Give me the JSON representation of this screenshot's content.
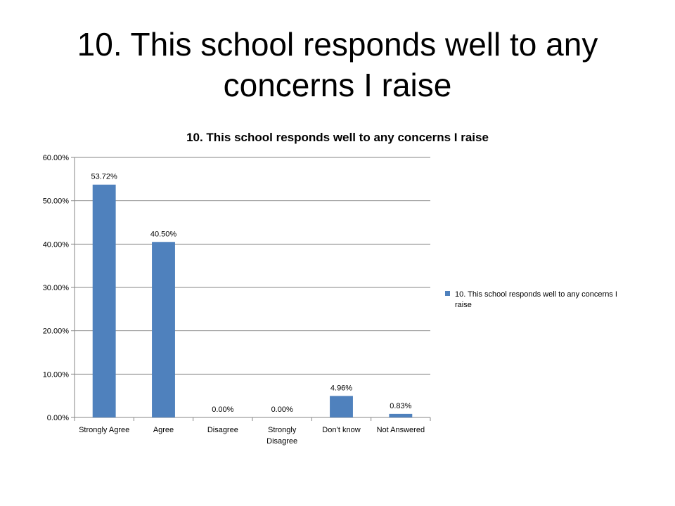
{
  "slide": {
    "title": "10. This school responds well to any concerns I raise"
  },
  "chart_data": {
    "type": "bar",
    "title": "10. This school responds well to any concerns I raise",
    "categories": [
      "Strongly Agree",
      "Agree",
      "Disagree",
      "Strongly Disagree",
      "Don’t know",
      "Not Answered"
    ],
    "series": [
      {
        "name": "10. This school responds well to any concerns I raise",
        "values": [
          53.72,
          40.5,
          0.0,
          0.0,
          4.96,
          0.83
        ],
        "labels": [
          "53.72%",
          "40.50%",
          "0.00%",
          "0.00%",
          "4.96%",
          "0.83%"
        ],
        "color": "#4f81bd"
      }
    ],
    "ylim": [
      0,
      60
    ],
    "yticks": [
      "0.00%",
      "10.00%",
      "20.00%",
      "30.00%",
      "40.00%",
      "50.00%",
      "60.00%"
    ],
    "xlabel": "",
    "ylabel": "",
    "grid": true,
    "legend_position": "right"
  }
}
